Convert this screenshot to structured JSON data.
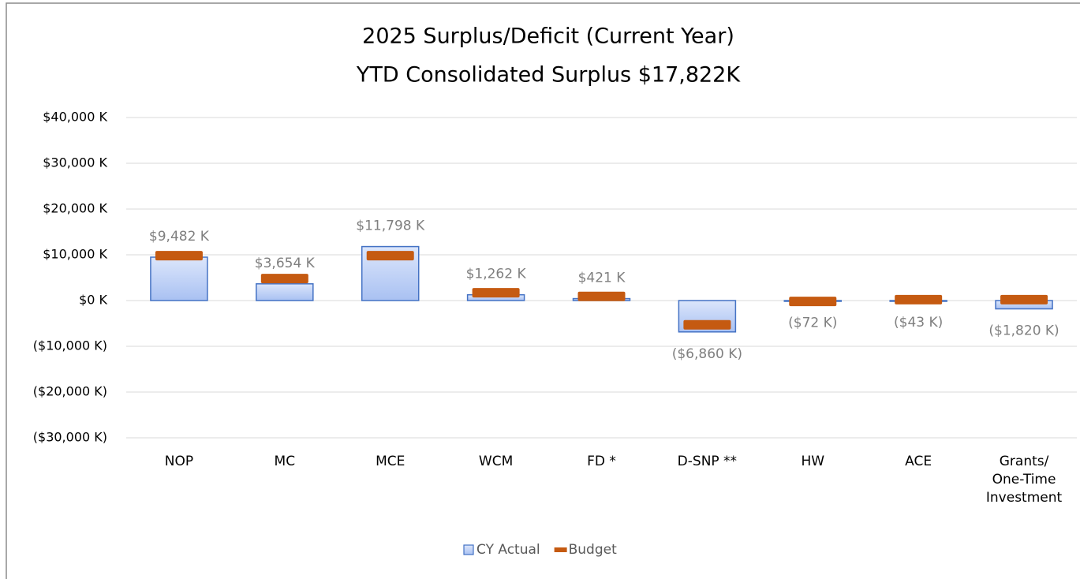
{
  "chart_data": {
    "type": "bar",
    "title": "2025 Surplus/Deficit (Current Year)",
    "subtitle": "YTD Consolidated Surplus $17,822K",
    "categories": [
      "NOP",
      "MC",
      "MCE",
      "WCM",
      "FD *",
      "D-SNP **",
      "HW",
      "ACE",
      "Grants/ One-Time Investment"
    ],
    "series": [
      {
        "name": "CY Actual",
        "color": "#4472c4",
        "values": [
          9482,
          3654,
          11798,
          1262,
          421,
          -6860,
          -72,
          -43,
          -1820
        ],
        "value_labels": [
          "$9,482 K",
          "$3,654 K",
          "$11,798 K",
          "$1,262 K",
          "$421 K",
          "($6,860 K)",
          "($72 K)",
          "($43 K)",
          "($1,820 K)"
        ]
      },
      {
        "name": "Budget",
        "color": "#c55a11",
        "values": [
          9800,
          4800,
          9800,
          1700,
          900,
          -5300,
          -200,
          200,
          200
        ]
      }
    ],
    "ylim": [
      -30000,
      40000
    ],
    "yticks": [
      {
        "value": -30000,
        "label": "($30,000 K)"
      },
      {
        "value": -20000,
        "label": "($20,000 K)"
      },
      {
        "value": -10000,
        "label": "($10,000 K)"
      },
      {
        "value": 0,
        "label": "$0 K"
      },
      {
        "value": 10000,
        "label": "$10,000 K"
      },
      {
        "value": 20000,
        "label": "$20,000 K"
      },
      {
        "value": 30000,
        "label": "$30,000 K"
      },
      {
        "value": 40000,
        "label": "$40,000 K"
      }
    ],
    "grid": true,
    "legend": "bottom"
  }
}
